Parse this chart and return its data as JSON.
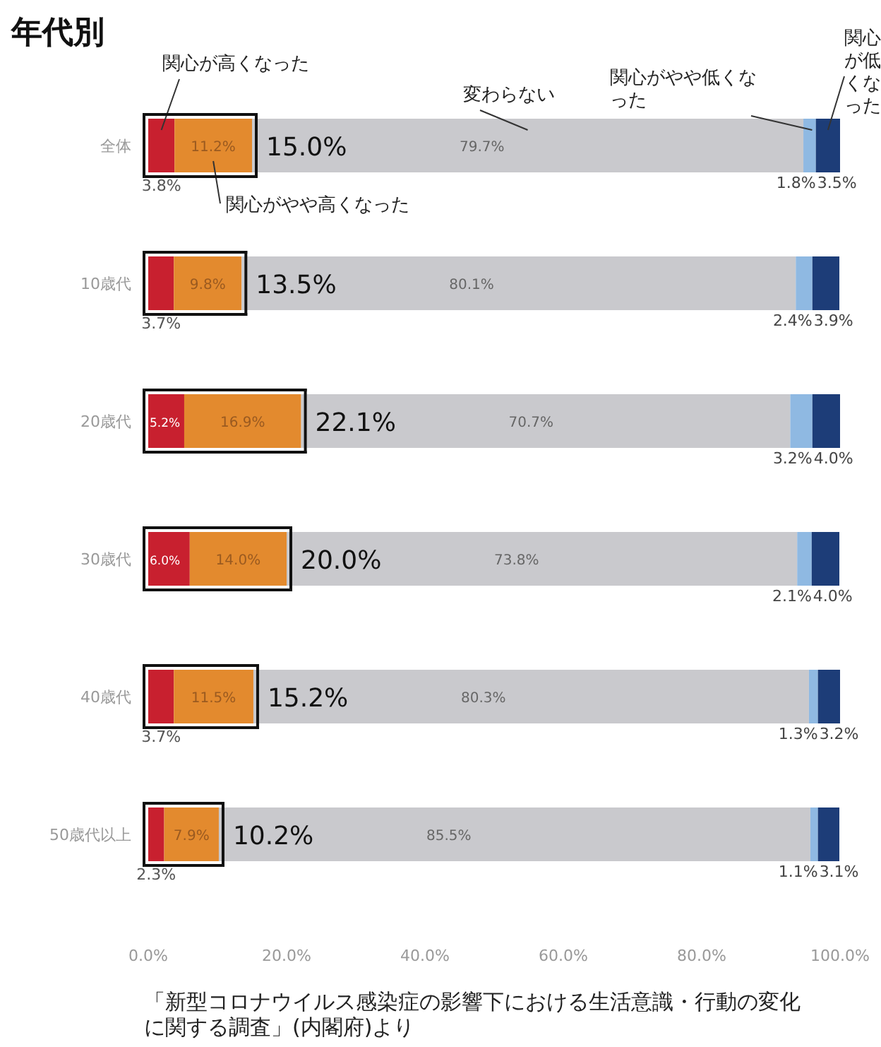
{
  "chart_data": {
    "type": "bar",
    "orientation": "horizontal",
    "stacked": true,
    "title": "年代別",
    "categories": [
      "全体",
      "10歳代",
      "20歳代",
      "30歳代",
      "40歳代",
      "50歳代以上"
    ],
    "series": [
      {
        "name": "関心が高くなった",
        "color": "#c8202f",
        "values": [
          3.8,
          3.7,
          5.2,
          6.0,
          3.7,
          2.3
        ],
        "value_labels": [
          "3.8%",
          "3.7%",
          "5.2%",
          "6.0%",
          "3.7%",
          "2.3%"
        ]
      },
      {
        "name": "関心がやや高くなった",
        "color": "#e38a2e",
        "values": [
          11.2,
          9.8,
          16.9,
          14.0,
          11.5,
          7.9
        ],
        "value_labels": [
          "11.2%",
          "9.8%",
          "16.9%",
          "14.0%",
          "11.5%",
          "7.9%"
        ]
      },
      {
        "name": "変わらない",
        "color": "#c9c9cd",
        "values": [
          79.7,
          80.1,
          70.7,
          73.8,
          80.3,
          85.5
        ],
        "value_labels": [
          "79.7%",
          "80.1%",
          "70.7%",
          "73.8%",
          "80.3%",
          "85.5%"
        ]
      },
      {
        "name": "関心がやや低くなった",
        "color": "#8fb9e2",
        "values": [
          1.8,
          2.4,
          3.2,
          2.1,
          1.3,
          1.1
        ],
        "value_labels": [
          "1.8%",
          "2.4%",
          "3.2%",
          "2.1%",
          "1.3%",
          "1.1%"
        ]
      },
      {
        "name": "関心が低くなった",
        "color": "#1d3d78",
        "values": [
          3.5,
          3.9,
          4.0,
          4.0,
          3.2,
          3.1
        ],
        "value_labels": [
          "3.5%",
          "3.9%",
          "4.0%",
          "4.0%",
          "3.2%",
          "3.1%"
        ]
      }
    ],
    "xlim": [
      0,
      100
    ],
    "xticks": [
      {
        "value": 0,
        "label": "0.0%"
      },
      {
        "value": 20,
        "label": "20.0%"
      },
      {
        "value": 40,
        "label": "40.0%"
      },
      {
        "value": 60,
        "label": "60.0%"
      },
      {
        "value": 80,
        "label": "80.0%"
      },
      {
        "value": 100,
        "label": "100.0%"
      }
    ],
    "annotations": [
      {
        "text": "15.0%",
        "x": 15.0,
        "y": "全体"
      },
      {
        "text": "13.5%",
        "x": 13.5,
        "y": "10歳代"
      },
      {
        "text": "22.1%",
        "x": 22.1,
        "y": "20歳代"
      },
      {
        "text": "20.0%",
        "x": 20.0,
        "y": "30歳代"
      },
      {
        "text": "15.2%",
        "x": 15.2,
        "y": "40歳代"
      },
      {
        "text": "10.2%",
        "x": 10.2,
        "y": "50歳代以上"
      },
      "「新型コロナウイルス感染症の影響下における生活意識・行動の変化に関する調査」(内閣府)より"
    ]
  }
}
